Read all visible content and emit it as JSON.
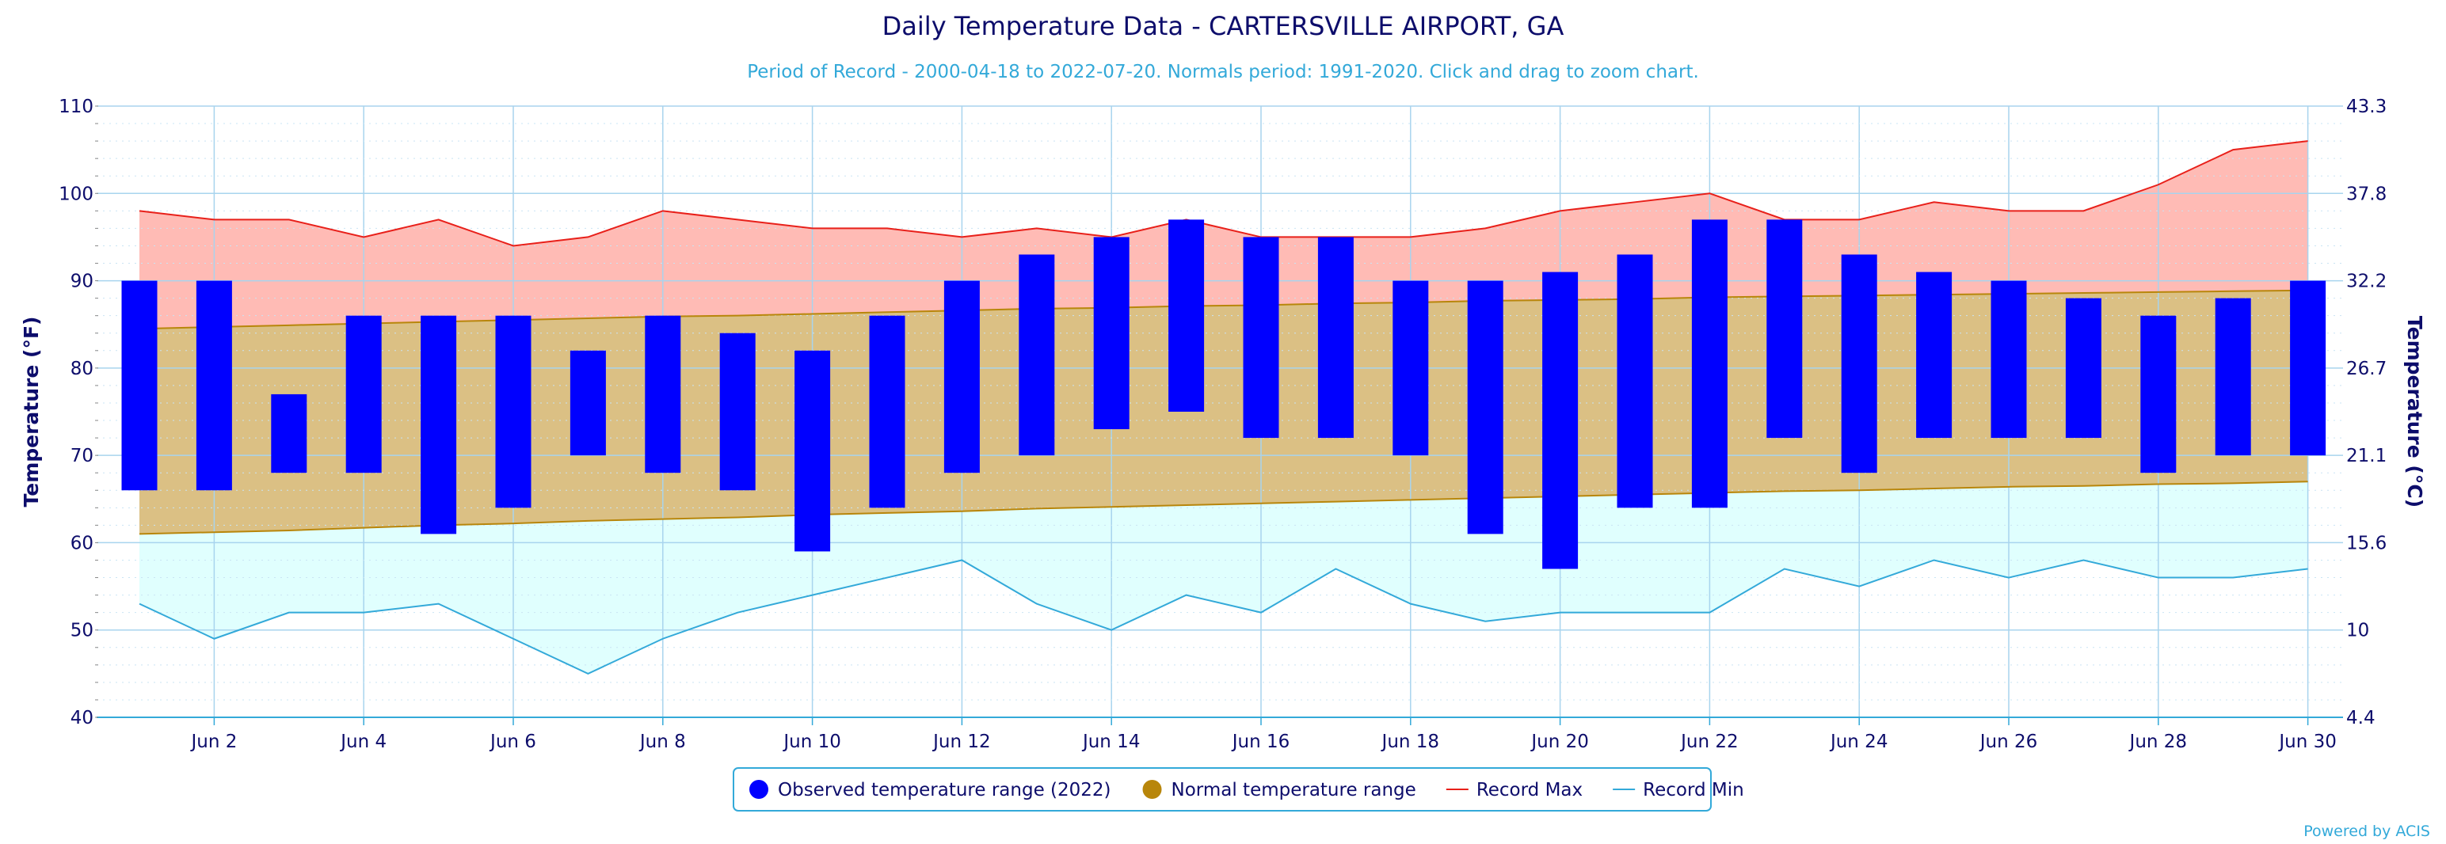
{
  "chart_data": {
    "type": "bar",
    "title": "Daily Temperature Data - CARTERSVILLE AIRPORT, GA",
    "subtitle": "Period of Record - 2000-04-18 to 2022-07-20. Normals period: 1991-2020. Click and drag to zoom chart.",
    "ylabel": "Temperature (°F)",
    "ylabel_right": "Temperature (°C)",
    "ylim": [
      40,
      110
    ],
    "y_ticks": [
      40,
      50,
      60,
      70,
      80,
      90,
      100,
      110
    ],
    "y_ticks_right": [
      "4.4",
      "10",
      "15.6",
      "21.1",
      "26.7",
      "32.2",
      "37.8",
      "43.3"
    ],
    "x_tick_labels": [
      "Jun 2",
      "Jun 4",
      "Jun 6",
      "Jun 8",
      "Jun 10",
      "Jun 12",
      "Jun 14",
      "Jun 16",
      "Jun 18",
      "Jun 20",
      "Jun 22",
      "Jun 24",
      "Jun 26",
      "Jun 28",
      "Jun 30"
    ],
    "days": [
      1,
      2,
      3,
      4,
      5,
      6,
      7,
      8,
      9,
      10,
      11,
      12,
      13,
      14,
      15,
      16,
      17,
      18,
      19,
      20,
      21,
      22,
      23,
      24,
      25,
      26,
      27,
      28,
      29,
      30
    ],
    "observed_low": [
      66,
      66,
      68,
      68,
      61,
      64,
      70,
      68,
      66,
      59,
      64,
      68,
      70,
      73,
      75,
      72,
      72,
      70,
      61,
      57,
      64,
      64,
      72,
      68,
      72,
      72,
      72,
      68,
      70,
      70
    ],
    "observed_high": [
      90,
      90,
      77,
      86,
      86,
      86,
      82,
      86,
      84,
      82,
      86,
      90,
      93,
      95,
      97,
      95,
      95,
      90,
      90,
      91,
      93,
      97,
      97,
      93,
      91,
      90,
      88,
      86,
      88,
      90
    ],
    "normal_low": [
      61,
      61.2,
      61.4,
      61.7,
      62,
      62.2,
      62.5,
      62.7,
      62.9,
      63.2,
      63.4,
      63.6,
      63.9,
      64.1,
      64.3,
      64.5,
      64.7,
      64.9,
      65.1,
      65.3,
      65.5,
      65.7,
      65.9,
      66,
      66.2,
      66.4,
      66.5,
      66.7,
      66.8,
      67
    ],
    "normal_high": [
      84.5,
      84.7,
      84.9,
      85.1,
      85.3,
      85.5,
      85.7,
      85.9,
      86,
      86.2,
      86.4,
      86.6,
      86.8,
      86.9,
      87.1,
      87.2,
      87.4,
      87.5,
      87.7,
      87.8,
      87.9,
      88.1,
      88.2,
      88.3,
      88.4,
      88.5,
      88.6,
      88.7,
      88.8,
      88.9
    ],
    "record_max": [
      98,
      97,
      97,
      95,
      97,
      94,
      95,
      98,
      97,
      96,
      96,
      95,
      96,
      95,
      97,
      95,
      95,
      95,
      96,
      98,
      99,
      100,
      97,
      97,
      99,
      98,
      98,
      101,
      105,
      106
    ],
    "record_min": [
      53,
      49,
      52,
      52,
      53,
      49,
      45,
      49,
      52,
      54,
      56,
      58,
      53,
      50,
      54,
      52,
      57,
      53,
      51,
      52,
      52,
      52,
      57,
      55,
      58,
      56,
      58,
      56,
      56,
      57
    ],
    "legend": [
      {
        "label": "Observed temperature range (2022)",
        "color": "#0000ff",
        "symbol": "circle"
      },
      {
        "label": "Normal temperature range",
        "color": "#b8860b",
        "symbol": "circle"
      },
      {
        "label": "Record Max",
        "color": "#e8201a",
        "symbol": "line"
      },
      {
        "label": "Record Min",
        "color": "#33a9d9",
        "symbol": "line"
      }
    ],
    "legend_position": "bottom-center",
    "grid": true,
    "credit": "Powered by ACIS"
  },
  "colors": {
    "observed": "#0000ff",
    "normal_fill": "#dbc084",
    "normal_line": "#b8860b",
    "record_max_fill": "#ffbbb5",
    "record_max_line": "#e8201a",
    "record_min_fill": "#e0fffe",
    "record_min_line": "#33a9d9",
    "grid": "#a8d4ee",
    "text": "#0d0d6b"
  }
}
